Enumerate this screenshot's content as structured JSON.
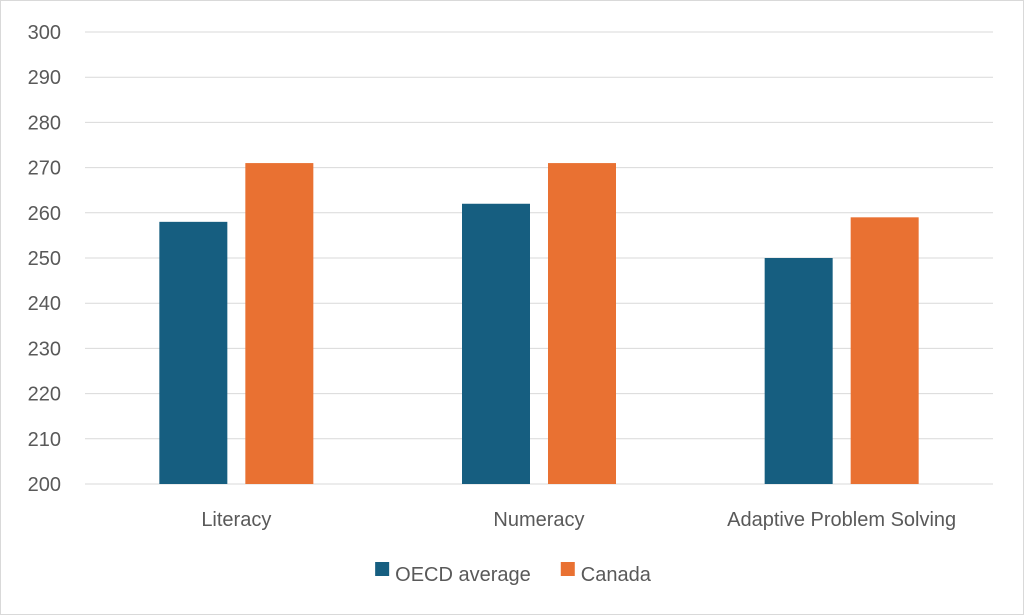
{
  "chart_data": {
    "type": "bar",
    "title": "",
    "xlabel": "",
    "ylabel": "",
    "categories": [
      "Literacy",
      "Numeracy",
      "Adaptive Problem Solving"
    ],
    "series": [
      {
        "name": "OECD average",
        "color": "#165e80",
        "values": [
          258,
          262,
          250
        ]
      },
      {
        "name": "Canada",
        "color": "#e97132",
        "values": [
          271,
          271,
          259
        ]
      }
    ],
    "ylim": [
      200,
      300
    ],
    "yticks": [
      200,
      210,
      220,
      230,
      240,
      250,
      260,
      270,
      280,
      290,
      300
    ],
    "grid": true,
    "legend_position": "bottom"
  }
}
